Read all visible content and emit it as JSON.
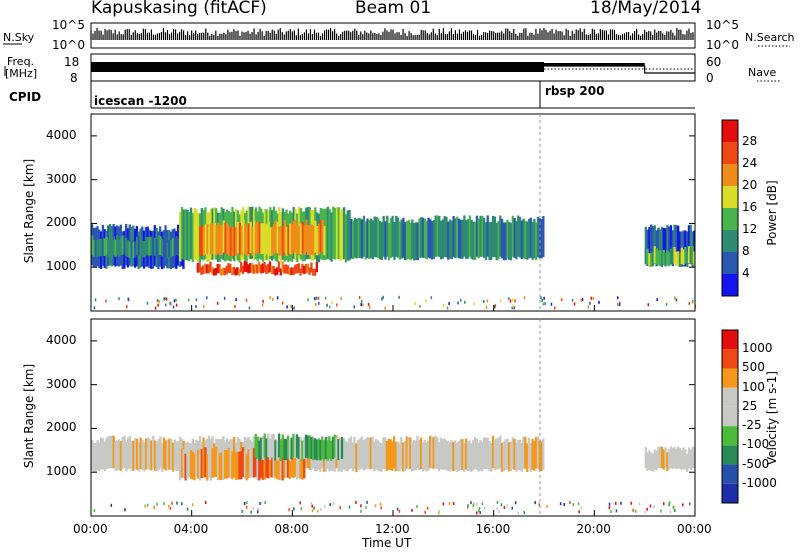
{
  "header": {
    "radar": "Kapuskasing (fitACF)",
    "beam": "Beam 01",
    "date": "18/May/2014"
  },
  "colors": {
    "power": [
      "#1414ee",
      "#2a58b0",
      "#2f8a72",
      "#49b34e",
      "#d9dd2a",
      "#f08c1a",
      "#ee4714",
      "#e30d0d"
    ],
    "velocity": [
      "#e30d0d",
      "#ee4714",
      "#f3981a",
      "#c8c8c4",
      "#c8c8c4",
      "#4cbb3c",
      "#2a8a57",
      "#2650ab",
      "#1b2ea8"
    ]
  },
  "panels": {
    "nsky": {
      "label": "N.Sky",
      "ticks": [
        "10^5",
        "10^0"
      ],
      "right_label": "N.Search",
      "right_ticks": [
        "10^5",
        "10^0"
      ]
    },
    "freq": {
      "label_line1": "Freq.",
      "label_line2": "[MHz]",
      "ticks": [
        "18",
        "8"
      ],
      "right_label": "Nave",
      "right_ticks": [
        "60",
        "0"
      ]
    },
    "cpid": {
      "label": "CPID",
      "segments": [
        {
          "name": "icescan -1200"
        },
        {
          "name": "rbsp 200"
        }
      ]
    }
  },
  "chart_data": [
    {
      "type": "heatmap",
      "name": "power",
      "ylabel": "Slant Range [km]",
      "xlabel": "Time UT",
      "x_ticks": [
        "00:00",
        "04:00",
        "08:00",
        "12:00",
        "16:00",
        "20:00",
        "00:00"
      ],
      "y_ticks": [
        1000,
        2000,
        3000,
        4000
      ],
      "ylim": [
        0,
        4500
      ],
      "colorbar": {
        "label": "Power [dB]",
        "ticks": [
          "28",
          "24",
          "20",
          "16",
          "12",
          "8",
          "4"
        ]
      },
      "regions": [
        {
          "t0": 0.0,
          "t1": 3.7,
          "r0": 1000,
          "r1": 1900,
          "level": 1
        },
        {
          "t0": 0.0,
          "t1": 4.0,
          "r0": 1250,
          "r1": 1650,
          "level": 2
        },
        {
          "t0": 3.5,
          "t1": 10.3,
          "r0": 1150,
          "r1": 2300,
          "level": 3
        },
        {
          "t0": 4.3,
          "t1": 9.3,
          "r0": 1300,
          "r1": 2000,
          "level": 5
        },
        {
          "t0": 4.2,
          "t1": 9.0,
          "r0": 850,
          "r1": 1050,
          "level": 6
        },
        {
          "t0": 10.3,
          "t1": 18.0,
          "r0": 1200,
          "r1": 2100,
          "level": 2
        },
        {
          "t0": 22.0,
          "t1": 24.0,
          "r0": 1050,
          "r1": 1900,
          "level": 1
        },
        {
          "t0": 22.0,
          "t1": 24.0,
          "r0": 1050,
          "r1": 1400,
          "level": 3
        }
      ]
    },
    {
      "type": "heatmap",
      "name": "velocity",
      "ylabel": "Slant Range [km]",
      "xlabel": "Time UT",
      "x_ticks": [
        "00:00",
        "04:00",
        "08:00",
        "12:00",
        "16:00",
        "20:00",
        "00:00"
      ],
      "y_ticks": [
        1000,
        2000,
        3000,
        4000
      ],
      "ylim": [
        0,
        4500
      ],
      "colorbar": {
        "label": "Velocity [m s-1]",
        "ticks": [
          "1000",
          "500",
          "100",
          "25",
          "-25",
          "-100",
          "-500",
          "-1000"
        ]
      },
      "regions": [
        {
          "t0": 0.0,
          "t1": 18.0,
          "r0": 1050,
          "r1": 1750,
          "level": 3
        },
        {
          "t0": 3.5,
          "t1": 8.5,
          "r0": 850,
          "r1": 1500,
          "level": 2
        },
        {
          "t0": 6.5,
          "t1": 10.0,
          "r0": 1300,
          "r1": 1800,
          "level": 5
        },
        {
          "t0": 22.0,
          "t1": 24.0,
          "r0": 1050,
          "r1": 1500,
          "level": 3
        }
      ]
    }
  ]
}
